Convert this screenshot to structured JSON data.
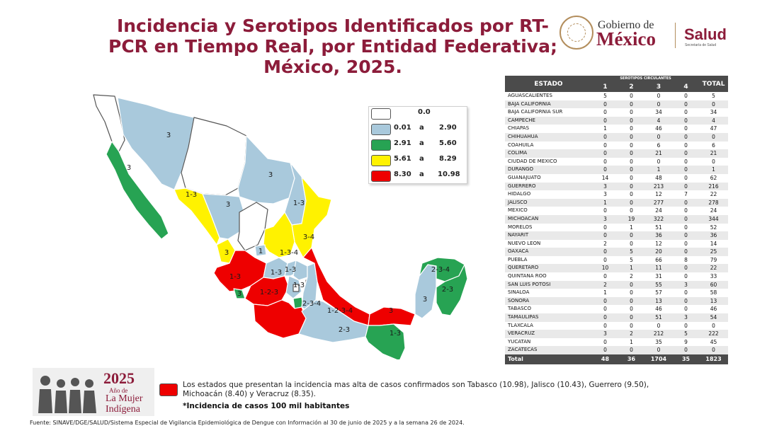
{
  "title": {
    "line1": "Incidencia y Serotipos Identificados por RT-",
    "line2": "PCR en Tiempo Real, por Entidad Federativa;",
    "line3": "México, 2025."
  },
  "logo": {
    "gobierno": "Gobierno de",
    "mexico": "México",
    "salud": "Salud",
    "secretaria": "Secretaría de Salud",
    "seal_icon": "eagle-seal-icon"
  },
  "colors": {
    "white": "#ffffff",
    "blue": "#a9c9dc",
    "green": "#27a353",
    "yellow": "#fff200",
    "red": "#ee0000",
    "accent": "#8c1c3a"
  },
  "legend": [
    {
      "from": "0.0",
      "sep": "",
      "to": "",
      "color": "#ffffff"
    },
    {
      "from": "0.01",
      "sep": "a",
      "to": "2.90",
      "color": "#a9c9dc"
    },
    {
      "from": "2.91",
      "sep": "a",
      "to": "5.60",
      "color": "#27a353"
    },
    {
      "from": "5.61",
      "sep": "a",
      "to": "8.29",
      "color": "#fff200"
    },
    {
      "from": "8.30",
      "sep": "a",
      "to": "10.98",
      "color": "#ee0000"
    }
  ],
  "map_labels": [
    "3",
    "3",
    "1-3",
    "3",
    "3",
    "1-3",
    "3-4",
    "3",
    "1",
    "1-3-4",
    "1-3",
    "1-3",
    "3",
    "1-2-3",
    "1-3",
    "1-3",
    "2-3-4",
    "1-2-3-4",
    "3",
    "2-3-4",
    "2-3",
    "3",
    "1-3",
    "2-3"
  ],
  "table": {
    "headers": {
      "estado": "ESTADO",
      "group": "SEROTIPOS CIRCULANTES",
      "s1": "1",
      "s2": "2",
      "s3": "3",
      "s4": "4",
      "total": "TOTAL"
    },
    "rows": [
      [
        "AGUASCALIENTES",
        "5",
        "0",
        "0",
        "0",
        "5"
      ],
      [
        "BAJA CALIFORNIA",
        "0",
        "0",
        "0",
        "0",
        "0"
      ],
      [
        "BAJA CALIFORNIA SUR",
        "0",
        "0",
        "34",
        "0",
        "34"
      ],
      [
        "CAMPECHE",
        "0",
        "0",
        "4",
        "0",
        "4"
      ],
      [
        "CHIAPAS",
        "1",
        "0",
        "46",
        "0",
        "47"
      ],
      [
        "CHIHUAHUA",
        "0",
        "0",
        "0",
        "0",
        "0"
      ],
      [
        "COAHUILA",
        "0",
        "0",
        "6",
        "0",
        "6"
      ],
      [
        "COLIMA",
        "0",
        "0",
        "21",
        "0",
        "21"
      ],
      [
        "CIUDAD DE MEXICO",
        "0",
        "0",
        "0",
        "0",
        "0"
      ],
      [
        "DURANGO",
        "0",
        "0",
        "1",
        "0",
        "1"
      ],
      [
        "GUANAJUATO",
        "14",
        "0",
        "48",
        "0",
        "62"
      ],
      [
        "GUERRERO",
        "3",
        "0",
        "213",
        "0",
        "216"
      ],
      [
        "HIDALGO",
        "3",
        "0",
        "12",
        "7",
        "22"
      ],
      [
        "JALISCO",
        "1",
        "0",
        "277",
        "0",
        "278"
      ],
      [
        "MEXICO",
        "0",
        "0",
        "24",
        "0",
        "24"
      ],
      [
        "MICHOACAN",
        "3",
        "19",
        "322",
        "0",
        "344"
      ],
      [
        "MORELOS",
        "0",
        "1",
        "51",
        "0",
        "52"
      ],
      [
        "NAYARIT",
        "0",
        "0",
        "36",
        "0",
        "36"
      ],
      [
        "NUEVO LEON",
        "2",
        "0",
        "12",
        "0",
        "14"
      ],
      [
        "OAXACA",
        "0",
        "5",
        "20",
        "0",
        "25"
      ],
      [
        "PUEBLA",
        "0",
        "5",
        "66",
        "8",
        "79"
      ],
      [
        "QUERETARO",
        "10",
        "1",
        "11",
        "0",
        "22"
      ],
      [
        "QUINTANA ROO",
        "0",
        "2",
        "31",
        "0",
        "33"
      ],
      [
        "SAN LUIS POTOSI",
        "2",
        "0",
        "55",
        "3",
        "60"
      ],
      [
        "SINALOA",
        "1",
        "0",
        "57",
        "0",
        "58"
      ],
      [
        "SONORA",
        "0",
        "0",
        "13",
        "0",
        "13"
      ],
      [
        "TABASCO",
        "0",
        "0",
        "46",
        "0",
        "46"
      ],
      [
        "TAMAULIPAS",
        "0",
        "0",
        "51",
        "3",
        "54"
      ],
      [
        "TLAXCALA",
        "0",
        "0",
        "0",
        "0",
        "0"
      ],
      [
        "VERACRUZ",
        "3",
        "2",
        "212",
        "5",
        "222"
      ],
      [
        "YUCATAN",
        "0",
        "1",
        "35",
        "9",
        "45"
      ],
      [
        "ZACATECAS",
        "0",
        "0",
        "0",
        "0",
        "0"
      ]
    ],
    "total": [
      "Total",
      "48",
      "36",
      "1704",
      "35",
      "1823"
    ]
  },
  "badge": {
    "year": "2025",
    "line2": "Año de",
    "line3": "La Mujer",
    "line4": "Indígena"
  },
  "note": "Los estados que presentan la incidencia mas alta de casos confirmados son Tabasco (10.98), Jalisco (10.43), Guerrero (9.50), Michoacán (8.40) y Veracruz (8.35).",
  "note2": "*Incidencia de casos 100 mil habitantes",
  "source": "Fuente: SINAVE/DGE/SALUD/Sistema Especial de Vigilancia Epidemiológica de Dengue con Información al 30 de junio de 2025 y a la semana 26 de 2024."
}
